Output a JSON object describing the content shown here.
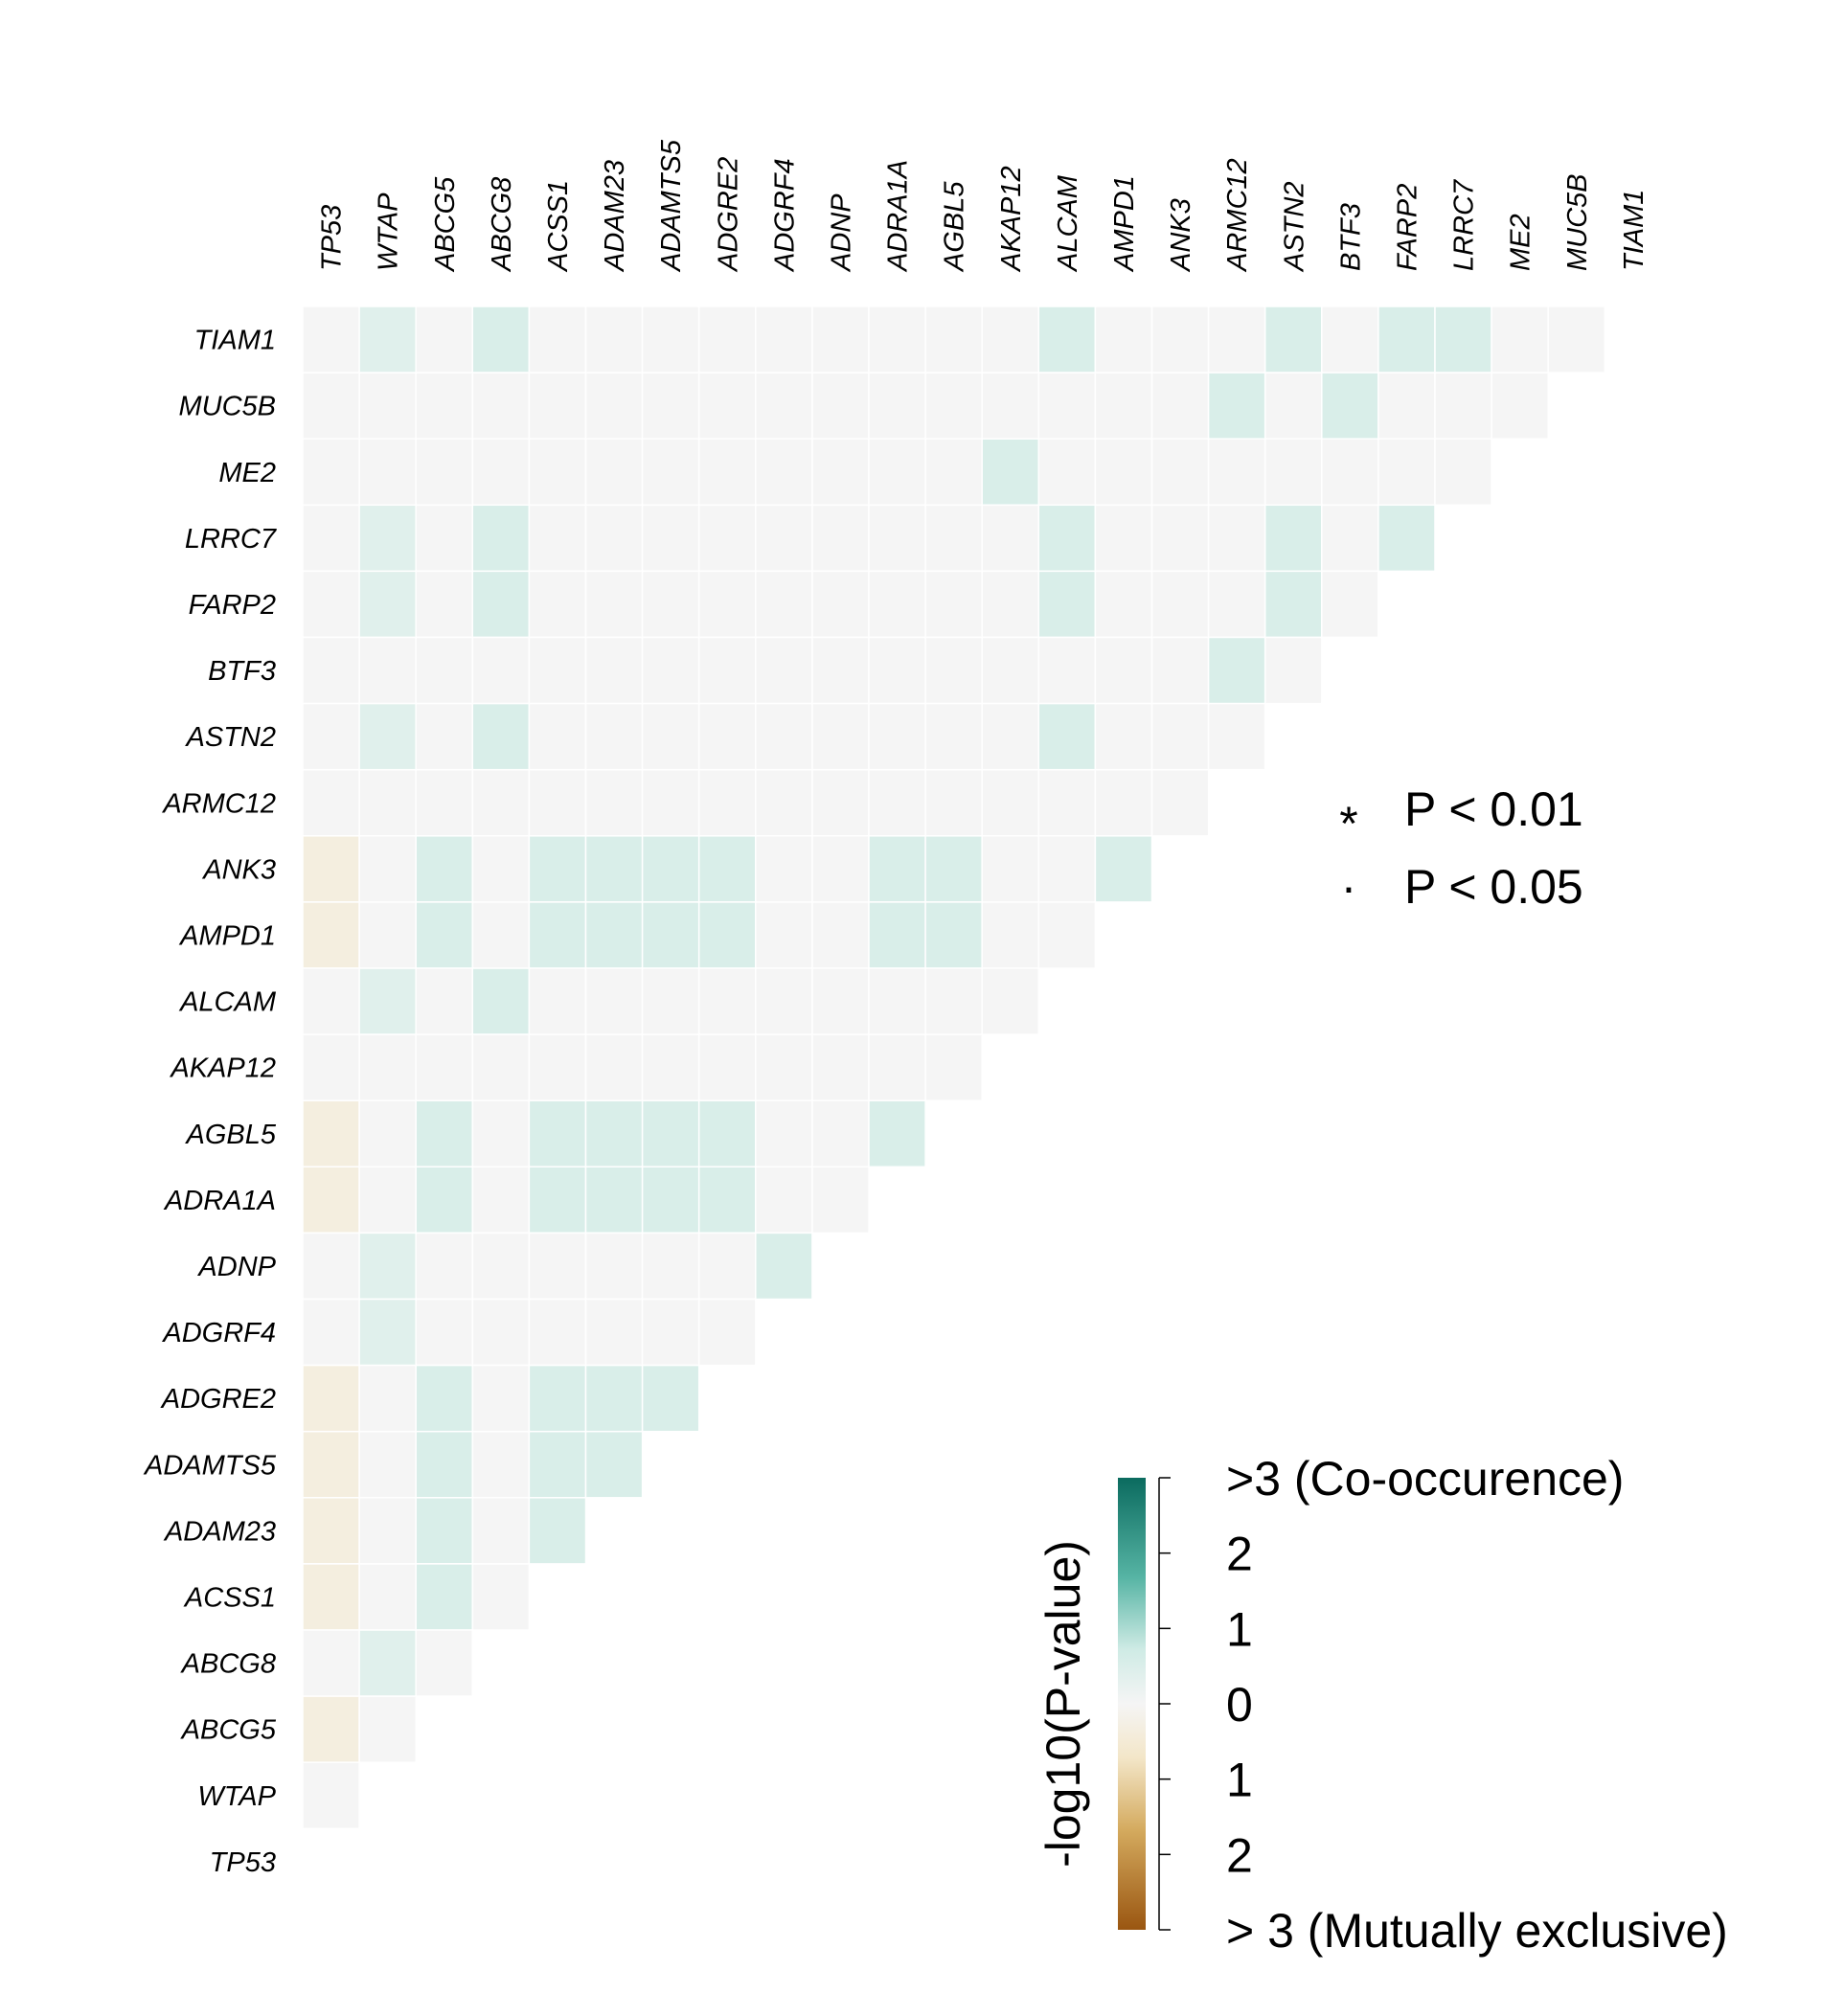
{
  "chart_data": {
    "type": "heatmap",
    "description_kind": "gene co-occurrence / mutual exclusivity lower-triangular matrix",
    "column_genes": [
      "TP53",
      "WTAP",
      "ABCG5",
      "ABCG8",
      "ACSS1",
      "ADAM23",
      "ADAMTS5",
      "ADGRE2",
      "ADGRF4",
      "ADNP",
      "ADRA1A",
      "AGBL5",
      "AKAP12",
      "ALCAM",
      "AMPD1",
      "ANK3",
      "ARMC12",
      "ASTN2",
      "BTF3",
      "FARP2",
      "LRRC7",
      "ME2",
      "MUC5B",
      "TIAM1"
    ],
    "row_genes": [
      "TIAM1",
      "MUC5B",
      "ME2",
      "LRRC7",
      "FARP2",
      "BTF3",
      "ASTN2",
      "ARMC12",
      "ANK3",
      "AMPD1",
      "ALCAM",
      "AKAP12",
      "AGBL5",
      "ADRA1A",
      "ADNP",
      "ADGRF4",
      "ADGRE2",
      "ADAMTS5",
      "ADAM23",
      "ACSS1",
      "ABCG8",
      "ABCG5",
      "WTAP",
      "TP53"
    ],
    "value_scale": "signed -log10(P-value); positive = co-occurrence, negative = mutual exclusivity",
    "cells": [
      [
        0,
        0.55,
        0,
        0.75,
        0,
        0,
        0,
        0,
        0,
        0,
        0,
        0,
        0,
        0.75,
        0,
        0,
        0,
        0.75,
        0,
        0.75,
        0.75,
        0,
        0
      ],
      [
        0,
        0,
        0,
        0,
        0,
        0,
        0,
        0,
        0,
        0,
        0,
        0,
        0,
        0,
        0,
        0,
        0.75,
        0,
        0.75,
        0,
        0,
        0
      ],
      [
        0,
        0,
        0,
        0,
        0,
        0,
        0,
        0,
        0,
        0,
        0,
        0,
        0.75,
        0,
        0,
        0,
        0,
        0,
        0,
        0,
        0
      ],
      [
        0,
        0.55,
        0,
        0.75,
        0,
        0,
        0,
        0,
        0,
        0,
        0,
        0,
        0,
        0.75,
        0,
        0,
        0,
        0.75,
        0,
        0.75
      ],
      [
        0,
        0.55,
        0,
        0.75,
        0,
        0,
        0,
        0,
        0,
        0,
        0,
        0,
        0,
        0.75,
        0,
        0,
        0,
        0.75,
        0
      ],
      [
        0,
        0,
        0,
        0,
        0,
        0,
        0,
        0,
        0,
        0,
        0,
        0,
        0,
        0,
        0,
        0,
        0.75,
        0
      ],
      [
        0,
        0.55,
        0,
        0.75,
        0,
        0,
        0,
        0,
        0,
        0,
        0,
        0,
        0,
        0.75,
        0,
        0,
        0
      ],
      [
        0,
        0,
        0,
        0,
        0,
        0,
        0,
        0,
        0,
        0,
        0,
        0,
        0,
        0,
        0,
        0
      ],
      [
        -0.5,
        0,
        0.75,
        0,
        0.75,
        0.75,
        0.75,
        0.75,
        0,
        0,
        0.75,
        0.75,
        0,
        0,
        0.75
      ],
      [
        -0.5,
        0,
        0.75,
        0,
        0.75,
        0.75,
        0.75,
        0.75,
        0,
        0,
        0.75,
        0.75,
        0,
        0
      ],
      [
        0,
        0.55,
        0,
        0.75,
        0,
        0,
        0,
        0,
        0,
        0,
        0,
        0,
        0
      ],
      [
        0,
        0,
        0,
        0,
        0,
        0,
        0,
        0,
        0,
        0,
        0,
        0
      ],
      [
        -0.5,
        0,
        0.75,
        0,
        0.75,
        0.75,
        0.75,
        0.75,
        0,
        0,
        0.75
      ],
      [
        -0.5,
        0,
        0.75,
        0,
        0.75,
        0.75,
        0.75,
        0.75,
        0,
        0
      ],
      [
        0,
        0.55,
        0,
        0,
        0,
        0,
        0,
        0,
        0.75
      ],
      [
        0,
        0.55,
        0,
        0,
        0,
        0,
        0,
        0
      ],
      [
        -0.5,
        0,
        0.75,
        0,
        0.75,
        0.75,
        0.75
      ],
      [
        -0.5,
        0,
        0.75,
        0,
        0.75,
        0.75
      ],
      [
        -0.5,
        0,
        0.75,
        0,
        0.75
      ],
      [
        -0.5,
        0,
        0.75,
        0
      ],
      [
        0,
        0.55,
        0
      ],
      [
        -0.5,
        0
      ],
      [
        0
      ],
      []
    ],
    "significance_legend": [
      {
        "symbol": "*",
        "label": "P < 0.01"
      },
      {
        "symbol": "·",
        "label": "P < 0.05"
      }
    ],
    "colorbar": {
      "title": "-log10(P-value)",
      "range": [
        -3,
        3
      ],
      "ticks": [
        {
          "value": 3,
          "label": ">3 (Co-occurence)"
        },
        {
          "value": 2,
          "label": "2"
        },
        {
          "value": 1,
          "label": "1"
        },
        {
          "value": 0,
          "label": "0"
        },
        {
          "value": -1,
          "label": "1"
        },
        {
          "value": -2,
          "label": "2"
        },
        {
          "value": -3,
          "label": "> 3 (Mutually exclusive)"
        }
      ],
      "colors": {
        "high": "#0b6b5f",
        "mid_high": "#56b4a4",
        "light_high": "#cfebe5",
        "zero": "#f5f5f5",
        "light_low": "#f3e6c8",
        "mid_low": "#d4aa5e",
        "low": "#9a5611"
      }
    },
    "grid": false
  }
}
